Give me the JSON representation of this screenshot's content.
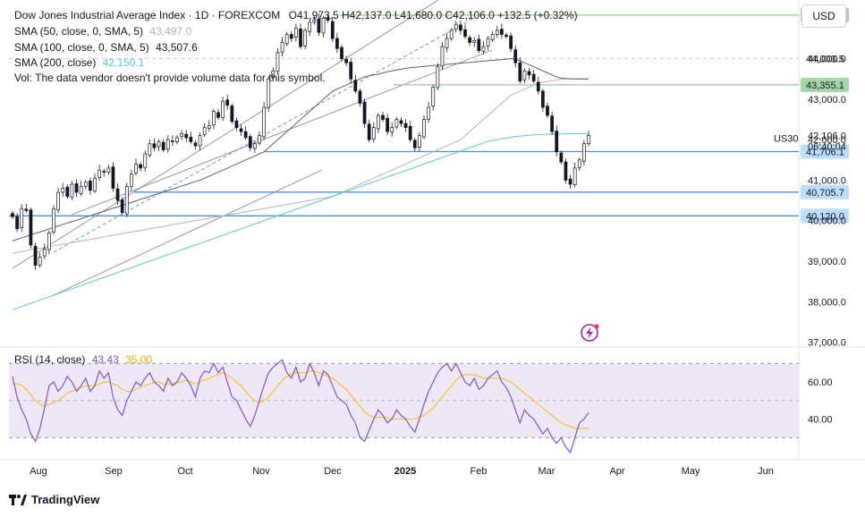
{
  "header": {
    "symbol_title": "Dow Jones Industrial Average Index · 1D · FOREXCOM",
    "ohlc": {
      "open_label": "O",
      "open": "41,973.5",
      "high_label": "H",
      "high": "42,137.0",
      "low_label": "L",
      "low": "41,680.0",
      "close_label": "C",
      "close": "42,106.0",
      "change": "+132.5 (+0.32%)"
    },
    "sma50_label": "SMA (50, close, 0, SMA, 5)",
    "sma50_value": "43,497.0",
    "sma100_label": "SMA (100, close, 0, SMA, 5)",
    "sma100_value": "43,507.6",
    "sma200_label": "SMA (200, close)",
    "sma200_value": "42,150.1",
    "volume_note": "Vol: The data vendor doesn't provide volume data for this symbol."
  },
  "currency_button": "USD",
  "symbol_tag": "US30",
  "countdown": "06:40:04",
  "rsi_label": "RSI (14, close)",
  "rsi_value": "43.43",
  "rsi_ma_value": "35.00",
  "footer_brand": "TradingView",
  "colors": {
    "up": "#131722",
    "sma50": "#5d606b",
    "sma100": "#b2b5be",
    "sma200": "#5bc8d8",
    "green_level": "#8fce8f",
    "blue_level": "#4a90e2",
    "rsi": "#7e57c2",
    "rsi_ma": "#f0c419",
    "rsi_band": "#ede7f6",
    "grid": "#eef0f3",
    "axis_text": "#131722"
  },
  "chart_data": {
    "type": "candlestick",
    "price_axis": {
      "ticks": [
        37000,
        38000,
        39000,
        40000,
        41000,
        42000,
        43000,
        44000,
        45000
      ],
      "ylim": [
        36880,
        45450
      ]
    },
    "horizontal_levels": [
      {
        "value": 45077.4,
        "label": "45,077.4",
        "style": "green"
      },
      {
        "value": 44003.5,
        "label": "44,003.5",
        "style": "plain"
      },
      {
        "value": 43355.1,
        "label": "43,355.1",
        "style": "green"
      },
      {
        "value": 41706.1,
        "label": "41,706.1",
        "style": "blue"
      },
      {
        "value": 40705.7,
        "label": "40,705.7",
        "style": "blue"
      },
      {
        "value": 40120.0,
        "label": "40,120.0",
        "style": "blue"
      }
    ],
    "last_price": {
      "value": 42106.0,
      "label": "42,106.0"
    },
    "x_labels": [
      "Aug",
      "Sep",
      "Oct",
      "Nov",
      "Dec",
      "2025",
      "Feb",
      "Mar",
      "Apr",
      "May",
      "Jun"
    ],
    "closes": [
      40100,
      39800,
      40300,
      40250,
      39400,
      38900,
      39100,
      39300,
      39700,
      40300,
      40700,
      40800,
      40600,
      40900,
      40700,
      40850,
      40950,
      40750,
      41050,
      41250,
      41200,
      41300,
      40800,
      40500,
      40200,
      40850,
      41150,
      41400,
      41300,
      41650,
      41900,
      41800,
      41950,
      41750,
      42000,
      41950,
      42050,
      42150,
      42050,
      41950,
      41850,
      42100,
      42300,
      42350,
      42700,
      42550,
      42950,
      42850,
      42450,
      42300,
      42200,
      42050,
      41800,
      41900,
      42100,
      42800,
      43500,
      43700,
      44150,
      44400,
      44600,
      44500,
      44750,
      44300,
      44700,
      44900,
      44950,
      44650,
      45000,
      44950,
      44500,
      44250,
      44000,
      43900,
      43500,
      43200,
      42900,
      42400,
      42000,
      42300,
      42600,
      42500,
      42200,
      42300,
      42500,
      42400,
      42300,
      42000,
      41800,
      42100,
      42500,
      42800,
      43300,
      43800,
      44300,
      44500,
      44700,
      44850,
      44700,
      44550,
      44400,
      44450,
      44200,
      44300,
      44500,
      44600,
      44700,
      44600,
      44550,
      44250,
      43900,
      43450,
      43700,
      43600,
      43450,
      43200,
      42800,
      42600,
      42200,
      41700,
      41450,
      41000,
      40900,
      41300,
      41500,
      41900,
      42106
    ],
    "sma50": [
      39500,
      39540,
      39580,
      39610,
      39650,
      39690,
      39720,
      39760,
      39800,
      39830,
      39870,
      39910,
      39940,
      39980,
      40010,
      40050,
      40090,
      40120,
      40160,
      40200,
      40230,
      40270,
      40310,
      40340,
      40380,
      40420,
      40450,
      40490,
      40530,
      40560,
      40600,
      40640,
      40670,
      40710,
      40750,
      40780,
      40820,
      40860,
      40890,
      40930,
      40970,
      41000,
      41050,
      41100,
      41150,
      41200,
      41250,
      41300,
      41350,
      41400,
      41450,
      41500,
      41550,
      41600,
      41650,
      41700,
      41800,
      41900,
      42000,
      42100,
      42200,
      42300,
      42400,
      42500,
      42600,
      42700,
      42800,
      42900,
      43000,
      43100,
      43200,
      43250,
      43300,
      43350,
      43400,
      43450,
      43500,
      43550,
      43580,
      43600,
      43620,
      43650,
      43680,
      43700,
      43720,
      43740,
      43760,
      43780,
      43790,
      43800,
      43810,
      43820,
      43830,
      43840,
      43850,
      43860,
      43870,
      43880,
      43890,
      43900,
      43910,
      43920,
      43930,
      43940,
      43950,
      43960,
      43970,
      43980,
      43990,
      44000,
      43990,
      43950,
      43900,
      43850,
      43800,
      43750,
      43700,
      43650,
      43600,
      43550,
      43520,
      43510,
      43505,
      43500,
      43498,
      43497,
      43497
    ],
    "sma100": [
      39200,
      39220,
      39240,
      39260,
      39280,
      39300,
      39320,
      39340,
      39360,
      39380,
      39400,
      39420,
      39440,
      39460,
      39480,
      39500,
      39520,
      39540,
      39560,
      39580,
      39600,
      39620,
      39640,
      39660,
      39680,
      39700,
      39720,
      39740,
      39760,
      39780,
      39800,
      39820,
      39840,
      39860,
      39880,
      39900,
      39920,
      39940,
      39960,
      39980,
      40000,
      40020,
      40040,
      40060,
      40080,
      40100,
      40120,
      40140,
      40160,
      40180,
      40200,
      40220,
      40240,
      40260,
      40280,
      40300,
      40320,
      40340,
      40360,
      40380,
      40400,
      40420,
      40440,
      40460,
      40480,
      40500,
      40520,
      40540,
      40560,
      40580,
      40600,
      40650,
      40700,
      40750,
      40800,
      40850,
      40900,
      40950,
      41000,
      41050,
      41100,
      41150,
      41200,
      41250,
      41300,
      41350,
      41400,
      41450,
      41500,
      41550,
      41600,
      41650,
      41700,
      41750,
      41800,
      41850,
      41900,
      41950,
      42000,
      42100,
      42200,
      42300,
      42400,
      42500,
      42600,
      42700,
      42800,
      42900,
      43000,
      43100,
      43150,
      43200,
      43250,
      43300,
      43350,
      43400,
      43420,
      43440,
      43460,
      43480,
      43490,
      43500,
      43505,
      43507,
      43507,
      43507,
      43507
    ],
    "sma200": [
      37800,
      37840,
      37880,
      37920,
      37960,
      38000,
      38040,
      38080,
      38120,
      38160,
      38200,
      38240,
      38280,
      38320,
      38360,
      38400,
      38440,
      38480,
      38520,
      38560,
      38600,
      38640,
      38680,
      38720,
      38760,
      38800,
      38840,
      38880,
      38920,
      38960,
      39000,
      39040,
      39080,
      39120,
      39160,
      39200,
      39240,
      39280,
      39320,
      39360,
      39400,
      39440,
      39480,
      39520,
      39560,
      39600,
      39640,
      39680,
      39720,
      39760,
      39800,
      39840,
      39880,
      39920,
      39960,
      40000,
      40040,
      40080,
      40120,
      40160,
      40200,
      40240,
      40280,
      40320,
      40360,
      40400,
      40440,
      40480,
      40520,
      40560,
      40600,
      40640,
      40680,
      40720,
      40760,
      40800,
      40840,
      40880,
      40920,
      40960,
      41000,
      41040,
      41080,
      41120,
      41160,
      41200,
      41240,
      41280,
      41320,
      41360,
      41400,
      41440,
      41480,
      41520,
      41560,
      41600,
      41640,
      41680,
      41720,
      41760,
      41800,
      41840,
      41880,
      41920,
      41960,
      41980,
      42000,
      42020,
      42040,
      42060,
      42080,
      42090,
      42100,
      42110,
      42120,
      42125,
      42130,
      42135,
      42140,
      42142,
      42144,
      42146,
      42147,
      42148,
      42149,
      42150,
      42150
    ],
    "rsi": {
      "ticks": [
        40.0,
        60.0
      ],
      "upper": 70,
      "lower": 30,
      "ylim": [
        20,
        75
      ],
      "values": [
        63,
        52,
        45,
        40,
        32,
        28,
        35,
        46,
        58,
        60,
        55,
        58,
        63,
        60,
        55,
        58,
        62,
        55,
        58,
        66,
        62,
        65,
        52,
        45,
        42,
        50,
        55,
        60,
        58,
        62,
        65,
        60,
        58,
        55,
        62,
        58,
        60,
        65,
        62,
        58,
        52,
        62,
        66,
        65,
        70,
        65,
        68,
        60,
        52,
        50,
        45,
        40,
        36,
        42,
        50,
        58,
        65,
        68,
        70,
        72,
        65,
        62,
        68,
        60,
        62,
        70,
        65,
        58,
        66,
        64,
        58,
        52,
        50,
        48,
        42,
        38,
        30,
        28,
        34,
        40,
        45,
        42,
        38,
        40,
        45,
        42,
        40,
        36,
        33,
        40,
        48,
        55,
        60,
        65,
        68,
        70,
        66,
        70,
        65,
        60,
        58,
        62,
        56,
        58,
        62,
        64,
        66,
        60,
        57,
        52,
        45,
        38,
        45,
        42,
        40,
        36,
        32,
        35,
        30,
        27,
        30,
        25,
        22,
        30,
        38,
        40,
        43.43
      ],
      "ma": [
        59,
        59,
        58,
        56,
        53,
        50,
        48,
        47,
        48,
        49,
        50,
        52,
        54,
        55,
        56,
        57,
        58,
        58,
        58,
        59,
        60,
        60,
        59,
        58,
        56,
        55,
        55,
        56,
        57,
        58,
        59,
        60,
        60,
        59,
        59,
        59,
        60,
        60,
        61,
        60,
        59,
        60,
        61,
        62,
        63,
        64,
        65,
        64,
        62,
        60,
        58,
        55,
        52,
        50,
        49,
        50,
        52,
        55,
        58,
        61,
        63,
        64,
        65,
        65,
        65,
        66,
        66,
        65,
        64,
        63,
        62,
        60,
        58,
        56,
        53,
        50,
        47,
        44,
        42,
        41,
        41,
        41,
        41,
        40,
        40,
        40,
        40,
        40,
        40,
        41,
        42,
        44,
        46,
        49,
        52,
        55,
        58,
        61,
        63,
        64,
        64,
        64,
        63,
        62,
        62,
        62,
        62,
        62,
        61,
        60,
        58,
        56,
        54,
        52,
        50,
        48,
        46,
        44,
        42,
        40,
        38,
        37,
        36,
        35,
        35,
        35,
        35
      ]
    }
  }
}
